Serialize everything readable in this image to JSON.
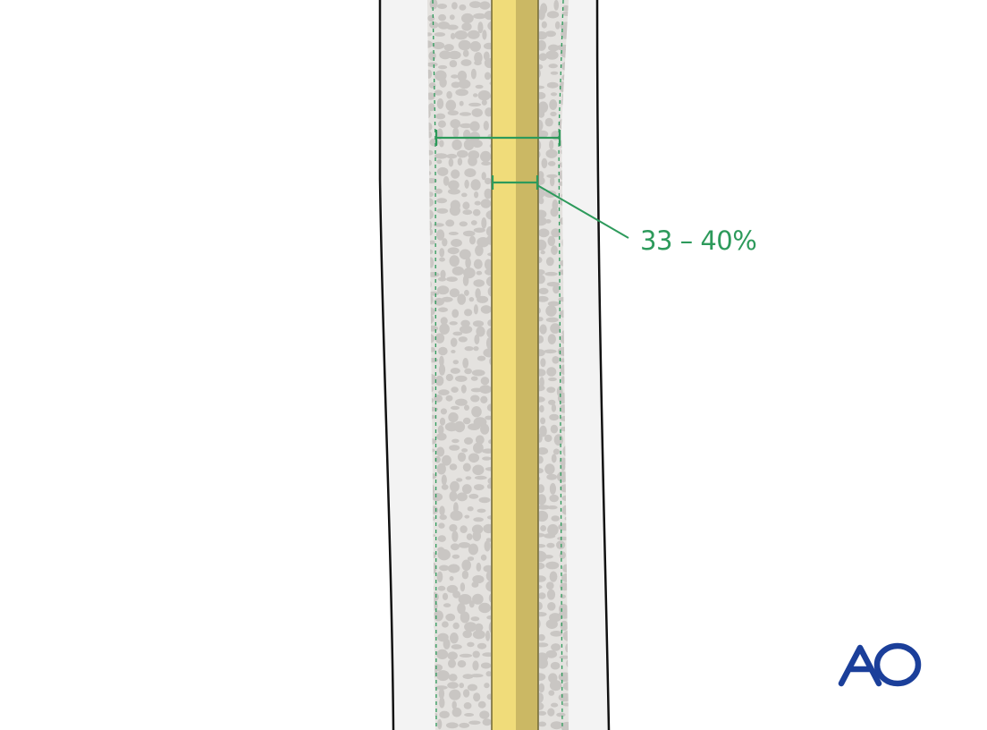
{
  "diagram": {
    "measurement_label": "33 – 40%",
    "logo_text": "AO",
    "colors": {
      "background": "#ffffff",
      "soft_tissue": "#f3f3f3",
      "outline": "#111111",
      "cancellous_fill": "#e4e2df",
      "cancellous_spots": "#c9c6c3",
      "nail_light": "#f0dc7a",
      "nail_dark": "#cbb864",
      "nail_edge": "#6b6130",
      "measure": "#2d9a5b",
      "logo": "#1b3f9a"
    },
    "icons": [
      "ao-logo-icon"
    ]
  }
}
